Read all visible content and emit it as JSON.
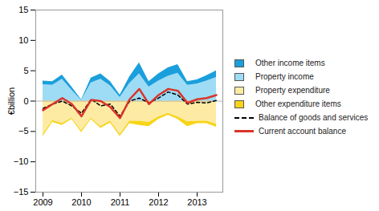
{
  "chart_data": {
    "type": "area",
    "y_label": "€billion",
    "categories": [
      "2009",
      null,
      null,
      null,
      "2010",
      null,
      null,
      null,
      "2011",
      null,
      null,
      null,
      "2012",
      null,
      null,
      null,
      "2013",
      null,
      null
    ],
    "stacked": true,
    "legend": "right",
    "grid": false,
    "ylim": [
      -15,
      15
    ],
    "yticks": [
      -15,
      -10,
      -5,
      0,
      5,
      10,
      15
    ],
    "series": [
      {
        "name": "Property income",
        "type": "area",
        "color": "#9edcf5",
        "values": [
          2.7,
          2.6,
          3.6,
          1.8,
          0.1,
          3.0,
          3.6,
          2.5,
          0.6,
          2.9,
          4.5,
          2.3,
          3.3,
          4.1,
          4.6,
          2.6,
          2.8,
          3.3,
          3.9
        ]
      },
      {
        "name": "Other income items",
        "type": "area",
        "color": "#1a9fdc",
        "values": [
          0.6,
          0.6,
          0.7,
          0.5,
          0.1,
          0.8,
          0.9,
          0.7,
          0.4,
          1.1,
          1.8,
          0.9,
          1.2,
          1.4,
          1.4,
          0.6,
          0.7,
          0.9,
          1.1
        ]
      },
      {
        "name": "Property expenditure",
        "type": "area",
        "color": "#fdeba4",
        "values": [
          -5.5,
          -3.2,
          -3.7,
          -2.8,
          -4.9,
          -2.8,
          -4.2,
          -3.3,
          -5.5,
          -3.3,
          -3.3,
          -3.5,
          -2.6,
          -2.0,
          -2.6,
          -3.4,
          -3.3,
          -3.3,
          -3.8
        ]
      },
      {
        "name": "Other expenditure items",
        "type": "area",
        "color": "#f7d417",
        "values": [
          -0.3,
          -0.3,
          -0.3,
          -0.2,
          -0.3,
          -0.2,
          -0.3,
          -0.3,
          -0.3,
          -0.4,
          -0.7,
          -0.7,
          -0.4,
          -0.3,
          -0.4,
          -0.8,
          -0.4,
          -0.4,
          -0.5
        ]
      },
      {
        "name": "Balance of goods and services",
        "type": "line",
        "line_style": "dashed",
        "color": "#000000",
        "values": [
          -1.2,
          -0.5,
          0.0,
          -0.8,
          -2.0,
          0.3,
          -0.8,
          -0.5,
          -2.5,
          0.0,
          0.5,
          -0.3,
          0.5,
          1.5,
          1.0,
          -0.5,
          -0.2,
          -0.3,
          0.1
        ]
      },
      {
        "name": "Current account balance",
        "type": "line",
        "line_style": "solid",
        "color": "#d9342b",
        "values": [
          -1.5,
          -0.5,
          0.5,
          -0.5,
          -2.5,
          0.2,
          0.0,
          -1.0,
          -2.8,
          0.3,
          2.0,
          -0.5,
          1.0,
          2.0,
          1.7,
          -0.3,
          0.3,
          0.5,
          1.0
        ]
      }
    ]
  }
}
